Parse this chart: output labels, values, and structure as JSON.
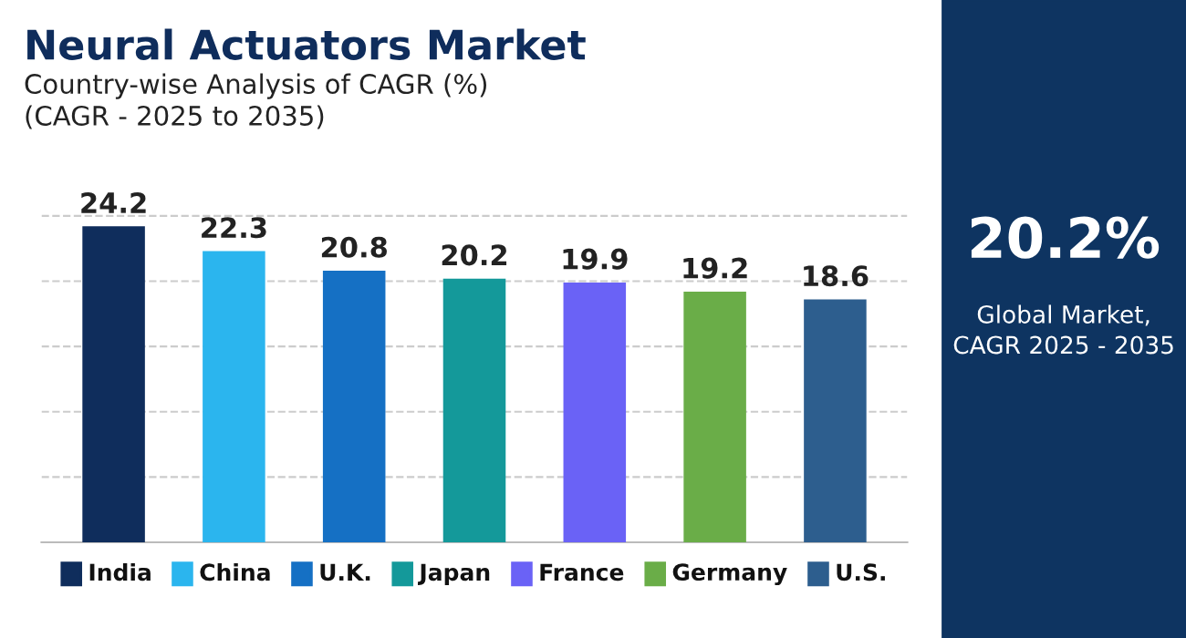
{
  "chart_data": {
    "type": "bar",
    "title": "Neural Actuators Market",
    "subtitle": "Country-wise Analysis of CAGR (%)\n(CAGR - 2025 to 2035)",
    "categories": [
      "India",
      "China",
      "U.K.",
      "Japan",
      "France",
      "Germany",
      "U.S."
    ],
    "values": [
      24.2,
      22.3,
      20.8,
      20.2,
      19.9,
      19.2,
      18.6
    ],
    "colors": [
      "#0f2d5c",
      "#2bb5ee",
      "#1570c4",
      "#14999a",
      "#6a62f6",
      "#6aad48",
      "#2d5e8e"
    ],
    "data_labels": true,
    "tick_labels": false,
    "grid": "y",
    "annotations": [
      "20.2%",
      "Global Market,\nCAGR 2025 - 2035"
    ]
  }
}
